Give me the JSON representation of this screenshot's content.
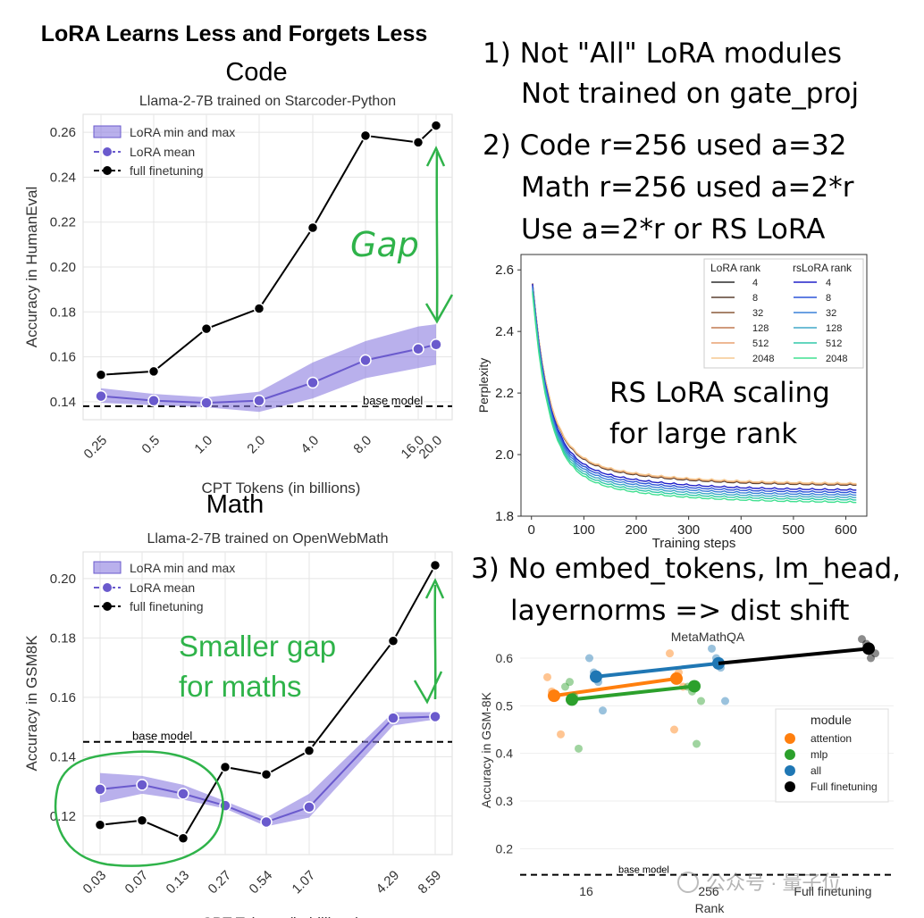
{
  "main_title": "LoRA Learns Less and Forgets Less",
  "notes": {
    "n1_line1": "1) Not \"All\" LoRA modules",
    "n1_line2": "Not trained on gate_proj",
    "n2_line1": "2) Code r=256 used a=32",
    "n2_line2": "Math r=256 used a=2*r",
    "n2_line3": "Use a=2*r or RS LoRA",
    "n3_line1": "3) No embed_tokens, lm_head,",
    "n3_line2": "layernorms => dist shift"
  },
  "annotations": {
    "gap": "Gap",
    "smaller_gap_1": "Smaller gap",
    "smaller_gap_2": "for maths",
    "rs_lora_1": "RS LoRA scaling",
    "rs_lora_2": "for large rank"
  },
  "watermark": "公众号 · 量子位",
  "colors": {
    "lora": "#6a5acd",
    "lora_band": "#8b7be0",
    "full": "#000000",
    "annotation_green": "#2fb34a",
    "attention": "#ff7f0e",
    "mlp": "#2ca02c",
    "all": "#1f77b4"
  },
  "chart_data": [
    {
      "id": "code",
      "type": "line",
      "section_title": "Code",
      "title": "Llama-2-7B trained on Starcoder-Python",
      "xlabel": "CPT Tokens (in billions)",
      "ylabel": "Accuracy in HumanEval",
      "x": [
        0.25,
        0.5,
        1.0,
        2.0,
        4.0,
        8.0,
        16.0,
        20.0
      ],
      "x_tick_labels": [
        "0.25",
        "0.5",
        "1.0",
        "2.0",
        "4.0",
        "8.0",
        "16.0",
        "20.0"
      ],
      "ylim": [
        0.132,
        0.268
      ],
      "y_ticks": [
        0.14,
        0.16,
        0.18,
        0.2,
        0.22,
        0.24,
        0.26
      ],
      "y_tick_labels": [
        "0.14",
        "0.16",
        "0.18",
        "0.20",
        "0.22",
        "0.24",
        "0.26"
      ],
      "series": [
        {
          "name": "full finetuning",
          "values": [
            0.152,
            0.1535,
            0.1725,
            0.1815,
            0.2175,
            0.2585,
            0.2555,
            0.263
          ]
        },
        {
          "name": "LoRA mean",
          "values": [
            0.1425,
            0.1405,
            0.1395,
            0.1405,
            0.1485,
            0.1585,
            0.1635,
            0.1655
          ]
        },
        {
          "name": "LoRA min and max",
          "min": [
            0.1395,
            0.1385,
            0.1375,
            0.1355,
            0.1415,
            0.1505,
            0.155,
            0.1565
          ],
          "max": [
            0.146,
            0.1435,
            0.142,
            0.1445,
            0.1575,
            0.167,
            0.1735,
            0.1745
          ]
        }
      ],
      "baseline": {
        "label": "base model",
        "value": 0.138
      },
      "legend": [
        "LoRA min and max",
        "LoRA mean",
        "full finetuning"
      ],
      "legend_position": "top-left"
    },
    {
      "id": "math",
      "type": "line",
      "section_title": "Math",
      "title": "Llama-2-7B trained on OpenWebMath",
      "xlabel": "CPT Tokens (in billions)",
      "ylabel": "Accuracy in GSM8K",
      "x": [
        0.03,
        0.07,
        0.13,
        0.27,
        0.54,
        1.07,
        4.29,
        8.59
      ],
      "x_tick_labels": [
        "0.03",
        "0.07",
        "0.13",
        "0.27",
        "0.54",
        "1.07",
        "4.29",
        "8.59"
      ],
      "ylim": [
        0.107,
        0.209
      ],
      "y_ticks": [
        0.12,
        0.14,
        0.16,
        0.18,
        0.2
      ],
      "y_tick_labels": [
        "0.12",
        "0.14",
        "0.16",
        "0.18",
        "0.20"
      ],
      "series": [
        {
          "name": "full finetuning",
          "values": [
            0.117,
            0.1185,
            0.1125,
            0.1365,
            0.134,
            0.142,
            0.179,
            0.2045
          ]
        },
        {
          "name": "LoRA mean",
          "values": [
            0.129,
            0.1305,
            0.1275,
            0.1235,
            0.118,
            0.123,
            0.153,
            0.1535
          ]
        },
        {
          "name": "LoRA min and max",
          "min": [
            0.1245,
            0.1275,
            0.1255,
            0.1225,
            0.1165,
            0.1195,
            0.1505,
            0.1525
          ],
          "max": [
            0.1345,
            0.1335,
            0.1305,
            0.125,
            0.1195,
            0.1275,
            0.155,
            0.155
          ]
        }
      ],
      "baseline": {
        "label": "base model",
        "value": 0.145
      },
      "legend": [
        "LoRA min and max",
        "LoRA mean",
        "full finetuning"
      ],
      "legend_position": "top-left"
    },
    {
      "id": "rslora",
      "type": "line",
      "xlabel": "Training steps",
      "ylabel": "Perplexity",
      "xlim": [
        -20,
        640
      ],
      "ylim": [
        1.8,
        2.65
      ],
      "x_ticks": [
        0,
        100,
        200,
        300,
        400,
        500,
        600
      ],
      "x_tick_labels": [
        "0",
        "100",
        "200",
        "300",
        "400",
        "500",
        "600"
      ],
      "y_ticks": [
        1.8,
        2.0,
        2.2,
        2.4,
        2.6
      ],
      "y_tick_labels": [
        "1.8",
        "2.0",
        "2.2",
        "2.4",
        "2.6"
      ],
      "legend_titles": [
        "LoRA rank",
        "rsLoRA rank"
      ],
      "ranks": [
        "4",
        "8",
        "32",
        "128",
        "512",
        "2048"
      ],
      "lora_colors": [
        "#2b2b2b",
        "#5a4030",
        "#8a5a3a",
        "#c07a50",
        "#e8a070",
        "#f5c890"
      ],
      "rslora_colors": [
        "#2020c8",
        "#2d55d8",
        "#3a80d8",
        "#40a8c8",
        "#30c8a8",
        "#40e090"
      ],
      "lora_final": [
        1.898,
        1.899,
        1.9,
        1.901,
        1.902,
        1.903
      ],
      "rslora_final": [
        1.882,
        1.874,
        1.866,
        1.858,
        1.85,
        1.842
      ]
    },
    {
      "id": "metamath",
      "type": "scatter",
      "title": "MetaMathQA",
      "xlabel": "Rank",
      "ylabel": "Accuracy in GSM-8K",
      "x_tick_labels": [
        "16",
        "256",
        "Full finetuning"
      ],
      "ylim": [
        0.135,
        0.66
      ],
      "y_ticks": [
        0.2,
        0.3,
        0.4,
        0.5,
        0.6
      ],
      "y_tick_labels": [
        "0.2",
        "0.3",
        "0.4",
        "0.5",
        "0.6"
      ],
      "baseline": {
        "label": "base model",
        "value": 0.145
      },
      "legend_title": "module",
      "series": [
        {
          "name": "attention",
          "means": [
            [
              16,
              0.521
            ],
            [
              256,
              0.557
            ]
          ],
          "points": [
            [
              16,
              0.56
            ],
            [
              16,
              0.53
            ],
            [
              16,
              0.52
            ],
            [
              16,
              0.44
            ],
            [
              256,
              0.61
            ],
            [
              256,
              0.45
            ],
            [
              256,
              0.57
            ],
            [
              256,
              0.54
            ]
          ]
        },
        {
          "name": "mlp",
          "means": [
            [
              16,
              0.513
            ],
            [
              256,
              0.541
            ]
          ],
          "points": [
            [
              16,
              0.54
            ],
            [
              16,
              0.55
            ],
            [
              16,
              0.52
            ],
            [
              16,
              0.41
            ],
            [
              256,
              0.54
            ],
            [
              256,
              0.53
            ],
            [
              256,
              0.42
            ],
            [
              256,
              0.51
            ]
          ]
        },
        {
          "name": "all",
          "means": [
            [
              16,
              0.561
            ],
            [
              256,
              0.589
            ]
          ],
          "points": [
            [
              16,
              0.6
            ],
            [
              16,
              0.57
            ],
            [
              16,
              0.55
            ],
            [
              16,
              0.49
            ],
            [
              256,
              0.62
            ],
            [
              256,
              0.6
            ],
            [
              256,
              0.58
            ],
            [
              256,
              0.51
            ]
          ]
        },
        {
          "name": "Full finetuning",
          "means": [
            [
              "Full finetuning",
              0.62
            ]
          ],
          "points": [
            [
              "Full finetuning",
              0.64
            ],
            [
              "Full finetuning",
              0.63
            ],
            [
              "Full finetuning",
              0.6
            ],
            [
              "Full finetuning",
              0.61
            ]
          ]
        }
      ]
    }
  ]
}
